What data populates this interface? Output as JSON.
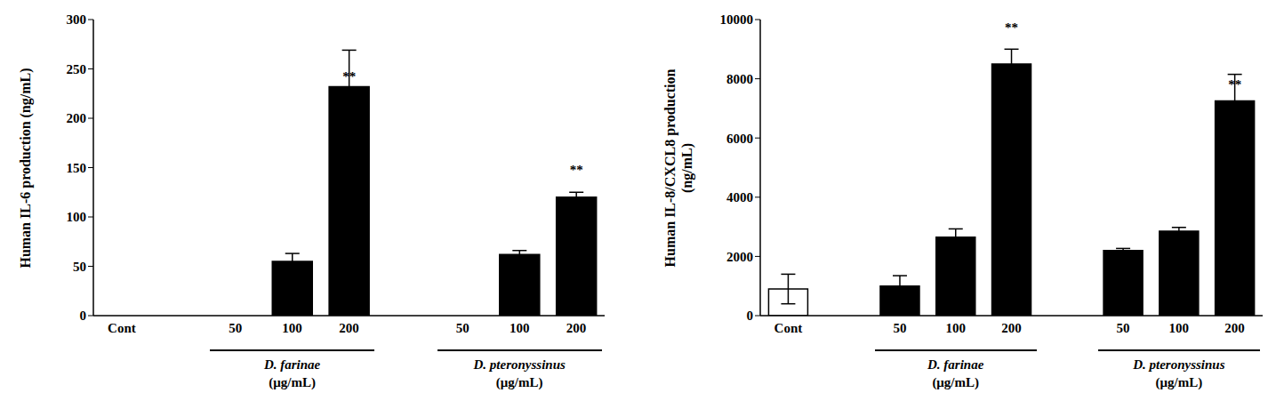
{
  "chart_data": [
    {
      "type": "bar",
      "ylabel": "Human IL-6 production (ng/mL)",
      "categories": [
        "Cont",
        null,
        "50",
        "100",
        "200",
        null,
        "50",
        "100",
        "200"
      ],
      "values": [
        0,
        null,
        0,
        55,
        232,
        null,
        0,
        62,
        120
      ],
      "errors": [
        null,
        null,
        null,
        8,
        37,
        null,
        null,
        4,
        5
      ],
      "value_annotations": [
        null,
        null,
        null,
        null,
        "**",
        null,
        null,
        null,
        "**"
      ],
      "colors": [
        "#ffffff",
        "#000000",
        "#000000",
        "#000000",
        "#000000",
        "#000000",
        "#000000",
        "#000000",
        "#000000"
      ],
      "groups": [
        {
          "label": "D. farinae",
          "unit": "(μg/mL)"
        },
        {
          "label": "D. pteronyssinus",
          "unit": "(μg/mL)"
        }
      ],
      "ylim": [
        0,
        300
      ],
      "yticks": [
        0,
        50,
        100,
        150,
        200,
        250,
        300
      ],
      "grid": false
    },
    {
      "type": "bar",
      "ylabel": "Human IL-8/CXCL8 production\n(ng/mL)",
      "categories": [
        "Cont",
        null,
        "50",
        "100",
        "200",
        null,
        "50",
        "100",
        "200"
      ],
      "values": [
        900,
        null,
        1000,
        2650,
        8500,
        null,
        2200,
        2850,
        7250
      ],
      "errors": [
        500,
        null,
        350,
        280,
        500,
        null,
        70,
        130,
        900
      ],
      "value_annotations": [
        null,
        null,
        null,
        null,
        "**",
        null,
        null,
        null,
        "**"
      ],
      "colors": [
        "#ffffff",
        "#000000",
        "#000000",
        "#000000",
        "#000000",
        "#000000",
        "#000000",
        "#000000",
        "#000000"
      ],
      "groups": [
        {
          "label": "D. farinae",
          "unit": "(μg/mL)"
        },
        {
          "label": "D. pteronyssinus",
          "unit": "(μg/mL)"
        }
      ],
      "ylim": [
        0,
        10000
      ],
      "yticks": [
        0,
        2000,
        4000,
        6000,
        8000,
        10000
      ],
      "grid": false
    }
  ]
}
